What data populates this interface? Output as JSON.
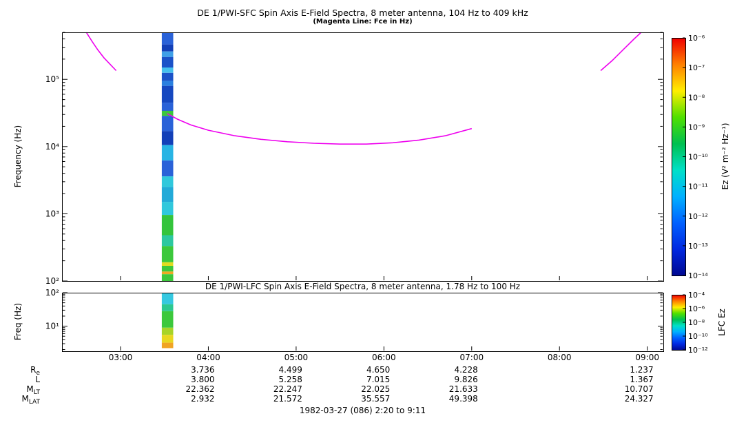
{
  "titles": {
    "sfc_title": "DE 1/PWI-SFC  Spin Axis E-Field Spectra, 8 meter antenna, 104 Hz to 409 kHz",
    "sfc_subtitle": "(Magenta Line: Fce in Hz)",
    "lfc_title": "DE 1/PWI-LFC  Spin Axis E-Field Spectra, 8 meter antenna, 1.78 Hz to 100 Hz",
    "caption": "1982-03-27 (086) 2:20 to 9:11"
  },
  "time_axis": {
    "min_hours": 2.333,
    "max_hours": 9.183,
    "ticks": [
      {
        "t": 3,
        "label": "03:00"
      },
      {
        "t": 4,
        "label": "04:00"
      },
      {
        "t": 5,
        "label": "05:00"
      },
      {
        "t": 6,
        "label": "06:00"
      },
      {
        "t": 7,
        "label": "07:00"
      },
      {
        "t": 8,
        "label": "08:00"
      },
      {
        "t": 9,
        "label": "09:00"
      }
    ]
  },
  "ephemeris": {
    "value_times": [
      4,
      5,
      6,
      7,
      9
    ],
    "rows": [
      {
        "base": "R",
        "sub": "e",
        "values": [
          "3.736",
          "4.499",
          "4.650",
          "4.228",
          "1.237"
        ]
      },
      {
        "base": "L",
        "sub": "",
        "values": [
          "3.800",
          "5.258",
          "7.015",
          "9.826",
          "1.367"
        ]
      },
      {
        "base": "M",
        "sub": "LT",
        "values": [
          "22.362",
          "22.247",
          "22.025",
          "21.633",
          "10.707"
        ]
      },
      {
        "base": "M",
        "sub": "LAT",
        "values": [
          "2.932",
          "21.572",
          "35.557",
          "49.398",
          "24.327"
        ]
      }
    ]
  },
  "chart_data": [
    {
      "type": "heatmap",
      "panel": "SFC",
      "title": "DE 1/PWI-SFC  Spin Axis E-Field Spectra, 8 meter antenna, 104 Hz to 409 kHz",
      "subtitle": "(Magenta Line: Fce in Hz)",
      "ylabel": "Frequency (Hz)",
      "yscale": "log",
      "ylim": [
        100,
        500000
      ],
      "xlim_hours": [
        2.333,
        9.183
      ],
      "grid": false,
      "yticks": [
        {
          "value": 100000,
          "label": "10⁵"
        },
        {
          "value": 10000,
          "label": "10⁴"
        },
        {
          "value": 1000,
          "label": "10³"
        },
        {
          "value": 100,
          "label": "10²"
        }
      ],
      "colorbar": {
        "label": "Ez (V² m⁻² Hz⁻¹)",
        "ticks": [
          "10⁻⁶",
          "10⁻⁷",
          "10⁻⁸",
          "10⁻⁹",
          "10⁻¹⁰",
          "10⁻¹¹",
          "10⁻¹²",
          "10⁻¹³",
          "10⁻¹⁴"
        ],
        "colors": [
          "#f00000",
          "#ff8000",
          "#ffee00",
          "#50e000",
          "#00c050",
          "#00e0c8",
          "#00b0ff",
          "#0060ff",
          "#0028e0",
          "#000890"
        ]
      },
      "fce_line": {
        "color": "#ee00ee",
        "unit": "Hz",
        "segments": [
          [
            [
              2.61,
              500000
            ],
            [
              2.68,
              360000
            ],
            [
              2.74,
              275000
            ],
            [
              2.81,
              210000
            ],
            [
              2.88,
              168000
            ],
            [
              2.95,
              135000
            ]
          ],
          [
            [
              3.53,
              31000
            ],
            [
              3.65,
              25500
            ],
            [
              3.8,
              21000
            ],
            [
              4.0,
              17500
            ],
            [
              4.3,
              14500
            ],
            [
              4.6,
              12800
            ],
            [
              4.9,
              11800
            ],
            [
              5.2,
              11200
            ],
            [
              5.5,
              10900
            ],
            [
              5.8,
              10900
            ],
            [
              6.1,
              11400
            ],
            [
              6.4,
              12500
            ],
            [
              6.7,
              14500
            ],
            [
              7.0,
              18500
            ]
          ],
          [
            [
              8.47,
              135000
            ],
            [
              8.6,
              190000
            ],
            [
              8.73,
              280000
            ],
            [
              8.85,
              400000
            ],
            [
              8.93,
              500000
            ]
          ]
        ]
      },
      "burst": {
        "t_start": 3.47,
        "t_end": 3.6,
        "bands": [
          [
            500000,
            330000,
            "#2a62d8"
          ],
          [
            330000,
            260000,
            "#1340b8"
          ],
          [
            260000,
            215000,
            "#3fa0e8"
          ],
          [
            215000,
            150000,
            "#1b52c8"
          ],
          [
            150000,
            125000,
            "#45c0ee"
          ],
          [
            125000,
            95000,
            "#1b52c8"
          ],
          [
            95000,
            80000,
            "#2a80e0"
          ],
          [
            80000,
            45000,
            "#1648c0"
          ],
          [
            45000,
            34000,
            "#2a62d8"
          ],
          [
            34000,
            28500,
            "#3cc83c"
          ],
          [
            28500,
            17000,
            "#2a62d8"
          ],
          [
            17000,
            10500,
            "#1340b8"
          ],
          [
            10500,
            6200,
            "#28b4e4"
          ],
          [
            6200,
            3600,
            "#2a62d8"
          ],
          [
            3600,
            2500,
            "#30c8dc"
          ],
          [
            2500,
            1500,
            "#22aad8"
          ],
          [
            1500,
            960,
            "#30c8dc"
          ],
          [
            960,
            480,
            "#34c43c"
          ],
          [
            480,
            330,
            "#2cc8a0"
          ],
          [
            330,
            190,
            "#3cc83c"
          ],
          [
            190,
            168,
            "#e0dc20"
          ],
          [
            168,
            138,
            "#3cc83c"
          ],
          [
            138,
            126,
            "#eeaa22"
          ],
          [
            126,
            100,
            "#3cc83c"
          ]
        ]
      }
    },
    {
      "type": "heatmap",
      "panel": "LFC",
      "title": "DE 1/PWI-LFC  Spin Axis E-Field Spectra, 8 meter antenna, 1.78 Hz to 100 Hz",
      "ylabel": "Freq (Hz)",
      "yscale": "log",
      "ylim": [
        1.78,
        100
      ],
      "xlim_hours": [
        2.333,
        9.183
      ],
      "grid": false,
      "yticks": [
        {
          "value": 100,
          "label": "10²"
        },
        {
          "value": 10,
          "label": "10¹"
        }
      ],
      "colorbar": {
        "label": "LFC Ez",
        "ticks": [
          "10⁻⁴",
          "10⁻⁶",
          "10⁻⁸",
          "10⁻¹⁰",
          "10⁻¹²"
        ],
        "colors": [
          "#f00000",
          "#ff8000",
          "#ffee00",
          "#50e000",
          "#00c050",
          "#00e0c8",
          "#00b0ff",
          "#0060ff",
          "#0028e0",
          "#000890"
        ]
      },
      "burst": {
        "t_start": 3.47,
        "t_end": 3.6,
        "bands": [
          [
            100,
            45,
            "#35c8e0"
          ],
          [
            45,
            28,
            "#2cc890"
          ],
          [
            28,
            9,
            "#3cc83c"
          ],
          [
            9,
            5.5,
            "#a8d428"
          ],
          [
            5.5,
            3.2,
            "#e8d820"
          ],
          [
            3.2,
            2.2,
            "#f0a424"
          ]
        ]
      }
    }
  ]
}
